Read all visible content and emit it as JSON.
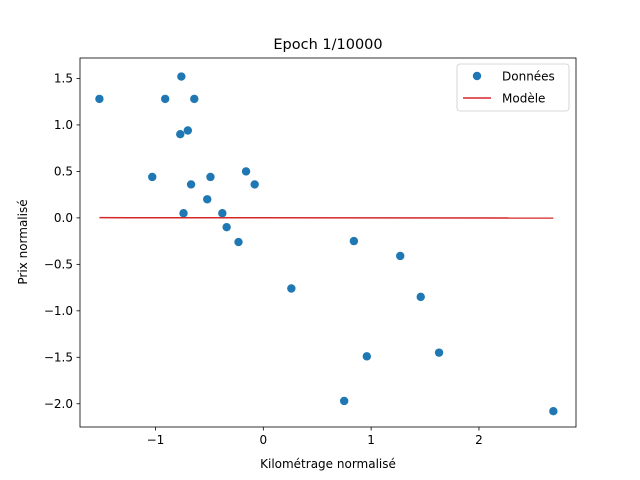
{
  "chart_data": {
    "type": "scatter",
    "title": "Epoch 1/10000",
    "xlabel": "Kilométrage normalisé",
    "ylabel": "Prix normalisé",
    "xlim": [
      -1.7,
      2.9
    ],
    "ylim": [
      -2.25,
      1.72
    ],
    "xticks": [
      -1,
      0,
      1,
      2
    ],
    "yticks": [
      -2.0,
      -1.5,
      -1.0,
      -0.5,
      0.0,
      0.5,
      1.0,
      1.5
    ],
    "xtick_labels": [
      "−1",
      "0",
      "1",
      "2"
    ],
    "ytick_labels": [
      "−2.0",
      "−1.5",
      "−1.0",
      "−0.5",
      "0.0",
      "0.5",
      "1.0",
      "1.5"
    ],
    "grid": false,
    "legend_position": "top-right",
    "series": [
      {
        "name": "Données",
        "type": "scatter",
        "color": "#1f77b4",
        "points": [
          {
            "x": -1.52,
            "y": 1.28
          },
          {
            "x": -1.03,
            "y": 0.44
          },
          {
            "x": -0.91,
            "y": 1.28
          },
          {
            "x": -0.77,
            "y": 0.9
          },
          {
            "x": -0.76,
            "y": 1.52
          },
          {
            "x": -0.74,
            "y": 0.05
          },
          {
            "x": -0.7,
            "y": 0.94
          },
          {
            "x": -0.67,
            "y": 0.36
          },
          {
            "x": -0.64,
            "y": 1.28
          },
          {
            "x": -0.52,
            "y": 0.2
          },
          {
            "x": -0.49,
            "y": 0.44
          },
          {
            "x": -0.38,
            "y": 0.05
          },
          {
            "x": -0.34,
            "y": -0.1
          },
          {
            "x": -0.23,
            "y": -0.26
          },
          {
            "x": -0.16,
            "y": 0.5
          },
          {
            "x": -0.08,
            "y": 0.36
          },
          {
            "x": 0.26,
            "y": -0.76
          },
          {
            "x": 0.75,
            "y": -1.97
          },
          {
            "x": 0.84,
            "y": -0.25
          },
          {
            "x": 0.96,
            "y": -1.49
          },
          {
            "x": 1.27,
            "y": -0.41
          },
          {
            "x": 1.46,
            "y": -0.85
          },
          {
            "x": 1.63,
            "y": -1.45
          },
          {
            "x": 2.69,
            "y": -2.08
          }
        ]
      },
      {
        "name": "Modèle",
        "type": "line",
        "color": "#d62728",
        "x": [
          -1.52,
          2.69
        ],
        "y": [
          0.002,
          -0.002
        ]
      }
    ]
  }
}
